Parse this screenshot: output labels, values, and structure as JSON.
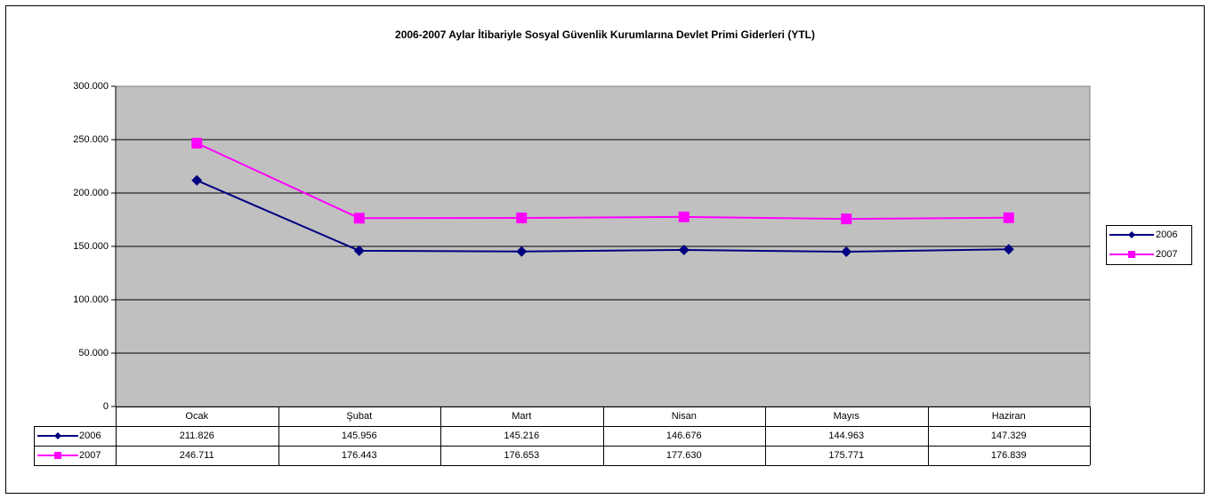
{
  "chart_data": {
    "type": "line",
    "title": "2006-2007 Aylar İtibariyle Sosyal Güvenlik Kurumlarına Devlet Primi Giderleri (YTL)",
    "categories": [
      "Ocak",
      "Şubat",
      "Mart",
      "Nisan",
      "Mayıs",
      "Haziran"
    ],
    "series": [
      {
        "name": "2006",
        "color": "#000080",
        "marker": "diamond",
        "values": [
          211826,
          145956,
          145216,
          146676,
          144963,
          147329
        ],
        "value_labels": [
          "211.826",
          "145.956",
          "145.216",
          "146.676",
          "144.963",
          "147.329"
        ]
      },
      {
        "name": "2007",
        "color": "#ff00ff",
        "marker": "square",
        "values": [
          246711,
          176443,
          176653,
          177630,
          175771,
          176839
        ],
        "value_labels": [
          "246.711",
          "176.443",
          "176.653",
          "177.630",
          "175.771",
          "176.839"
        ]
      }
    ],
    "ylim": [
      0,
      300000
    ],
    "yticks": [
      0,
      {
        "value": 50000,
        "label": "50.000"
      },
      {
        "value": 100000,
        "label": "100.000"
      },
      {
        "value": 150000,
        "label": "150.000"
      },
      {
        "value": 200000,
        "label": "200.000"
      },
      {
        "value": 250000,
        "label": "250.000"
      },
      {
        "value": 300000,
        "label": "300.000"
      }
    ],
    "grid": true,
    "legend": "right"
  }
}
